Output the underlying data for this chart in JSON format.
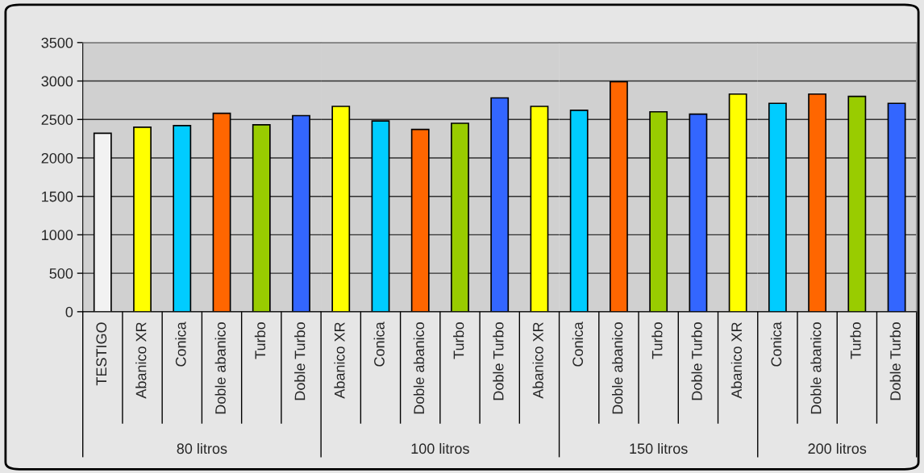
{
  "chart_data": [
    {
      "type": "bar",
      "xlabel": "80 litros",
      "categories": [
        "TESTIGO",
        "Abanico XR",
        "Conica",
        "Doble abanico",
        "Turbo",
        "Doble Turbo"
      ],
      "values": [
        2320,
        2400,
        2420,
        2580,
        2430,
        2550
      ],
      "colors": [
        "#f2f2f2",
        "#ffff00",
        "#00ccff",
        "#ff6600",
        "#99cc00",
        "#3366ff"
      ],
      "ylim": [
        0,
        3500
      ],
      "yticks": [
        0,
        500,
        1000,
        1500,
        2000,
        2500,
        3000,
        3500
      ],
      "grid": "y"
    },
    {
      "type": "bar",
      "xlabel": "100 litros",
      "categories": [
        "Abanico XR",
        "Conica",
        "Doble abanico",
        "Turbo",
        "Doble Turbo",
        "Abanico XR"
      ],
      "values": [
        2670,
        2480,
        2370,
        2450,
        2780,
        2670
      ],
      "colors": [
        "#ffff00",
        "#00ccff",
        "#ff6600",
        "#99cc00",
        "#3366ff",
        "#ffff00"
      ],
      "ylim": [
        0,
        3500
      ],
      "yticks": [
        0,
        500,
        1000,
        1500,
        2000,
        2500,
        3000,
        3500
      ],
      "grid": "y",
      "tick_labels": "x"
    },
    {
      "type": "bar",
      "xlabel": "150 litros",
      "categories": [
        "Conica",
        "Doble abanico",
        "Turbo",
        "Doble Turbo",
        "Abanico XR"
      ],
      "values": [
        2620,
        2990,
        2600,
        2570,
        2830
      ],
      "colors": [
        "#00ccff",
        "#ff6600",
        "#99cc00",
        "#3366ff",
        "#ffff00"
      ],
      "ylim": [
        0,
        3500
      ],
      "yticks": [
        0,
        500,
        1000,
        1500,
        2000,
        2500,
        3000,
        3500
      ],
      "grid": "y",
      "tick_labels": "x"
    },
    {
      "type": "bar",
      "xlabel": "200 litros",
      "categories": [
        "Conica",
        "Doble abanico",
        "Turbo",
        "Doble Turbo"
      ],
      "values": [
        2710,
        2830,
        2800,
        2710
      ],
      "colors": [
        "#00ccff",
        "#ff6600",
        "#99cc00",
        "#3366ff"
      ],
      "ylim": [
        0,
        3500
      ],
      "yticks": [
        0,
        500,
        1000,
        1500,
        2000,
        2500,
        3000,
        3500
      ],
      "grid": "y",
      "tick_labels": "x"
    }
  ]
}
